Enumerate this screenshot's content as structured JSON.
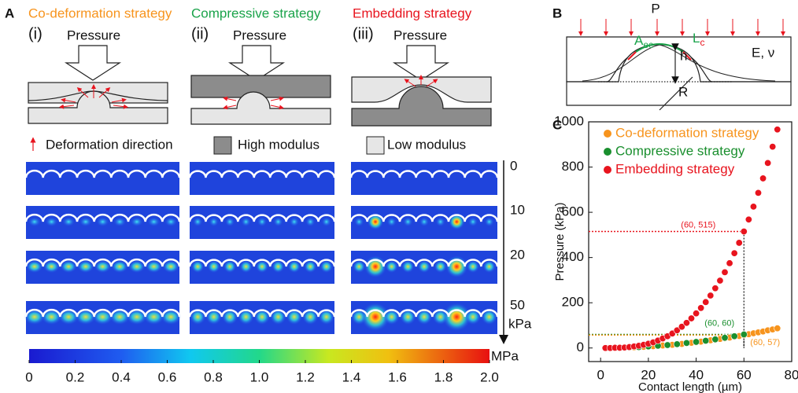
{
  "panel_a": {
    "letter": "A",
    "strategies": [
      {
        "title": "Co-deformation strategy",
        "color": "#f7941d",
        "numeral": "(i)",
        "pressure": "Pressure"
      },
      {
        "title": "Compressive strategy",
        "color": "#1aa34a",
        "numeral": "(ii)",
        "pressure": "Pressure"
      },
      {
        "title": "Embedding strategy",
        "color": "#e8141e",
        "numeral": "(iii)",
        "pressure": "Pressure"
      }
    ],
    "legend": {
      "deformation": "Deformation direction",
      "high": "High modulus",
      "low": "Low modulus"
    },
    "pressure_levels": [
      "0",
      "10",
      "20",
      "50"
    ],
    "pressure_unit": "kPa",
    "colorbar": {
      "unit": "MPa",
      "lim": [
        0,
        2
      ],
      "ticks": [
        0,
        0.2,
        0.4,
        0.6,
        0.8,
        {
          "value": 1,
          "label": "1.0"
        },
        1.2,
        1.4,
        1.6,
        1.8,
        {
          "value": 2,
          "label": "2.0"
        }
      ]
    }
  },
  "panel_b": {
    "letter": "B",
    "p": "P",
    "a": "A",
    "a_sub": "ec",
    "l": "L",
    "l_sub": "c",
    "h": "h",
    "modulus": "E, ν",
    "r": "R"
  },
  "panel_c": {
    "letter": "C"
  },
  "chart_data": {
    "type": "scatter",
    "xlabel": "Contact length (µm)",
    "ylabel": "Pressure (kPa)",
    "xlim": [
      -5,
      80
    ],
    "ylim": [
      -60,
      1000
    ],
    "xticks": [
      0,
      20,
      40,
      60,
      80
    ],
    "yticks": [
      0,
      200,
      400,
      600,
      800,
      1000
    ],
    "legend": "top-left",
    "series": [
      {
        "name": "Co-deformation strategy",
        "color": "#f7941d",
        "x": [
          2,
          4,
          6,
          8,
          10,
          12,
          14,
          16,
          18,
          20,
          22,
          24,
          26,
          28,
          30,
          32,
          34,
          36,
          38,
          40,
          42,
          44,
          46,
          48,
          50,
          52,
          54,
          56,
          58,
          60,
          62,
          64,
          66,
          68,
          70,
          72,
          74
        ],
        "values": [
          0,
          0,
          1,
          1,
          2,
          2,
          3,
          4,
          5,
          6,
          8,
          9,
          11,
          12,
          14,
          16,
          18,
          21,
          23,
          25,
          28,
          31,
          34,
          37,
          40,
          43,
          46,
          50,
          53,
          57,
          61,
          65,
          69,
          73,
          78,
          82,
          87
        ]
      },
      {
        "name": "Compressive strategy",
        "color": "#1a8f2e",
        "x": [
          12,
          16,
          20,
          24,
          28,
          32,
          36,
          40,
          44,
          48,
          52,
          56,
          60
        ],
        "values": [
          2,
          4,
          7,
          10,
          13,
          17,
          22,
          27,
          32,
          38,
          45,
          52,
          60
        ]
      },
      {
        "name": "Embedding strategy",
        "color": "#e8141e",
        "x": [
          2,
          4,
          6,
          8,
          10,
          12,
          14,
          16,
          18,
          20,
          22,
          24,
          26,
          28,
          30,
          32,
          34,
          36,
          38,
          40,
          42,
          44,
          46,
          48,
          50,
          52,
          54,
          56,
          58,
          60,
          62,
          64,
          66,
          68,
          70,
          72,
          74
        ],
        "values": [
          0,
          0,
          1,
          1,
          2,
          4,
          7,
          10,
          14,
          19,
          25,
          33,
          42,
          52,
          64,
          78,
          94,
          111,
          131,
          153,
          177,
          203,
          232,
          264,
          298,
          335,
          375,
          419,
          465,
          515,
          568,
          625,
          686,
          750,
          818,
          890,
          966
        ]
      }
    ],
    "annotations": [
      {
        "label": "(60, 515)",
        "x": 60,
        "y": 515,
        "color": "#e8141e"
      },
      {
        "label": "(60, 60)",
        "x": 60,
        "y": 60,
        "color": "#1a8f2e"
      },
      {
        "label": "(60, 57)",
        "x": 60,
        "y": 57,
        "color": "#f7941d"
      }
    ]
  }
}
